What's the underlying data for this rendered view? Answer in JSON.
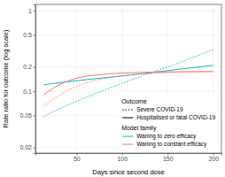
{
  "chart_data": {
    "type": "line",
    "xlabel": "Days since second dose",
    "ylabel": "Rate ratio for outcome (log scale)",
    "log": "y",
    "grid": true,
    "legend": "bottom-right",
    "x": [
      14,
      25,
      50,
      75,
      100,
      125,
      150,
      175,
      200
    ],
    "xlim": [
      5,
      209
    ],
    "xticks": [
      50,
      100,
      150,
      200
    ],
    "ylim": [
      0.017,
      1.2
    ],
    "yticks": [
      0.02,
      0.05,
      0.1,
      0.2,
      0.5,
      1
    ],
    "series": [
      {
        "color": "#00BFC4",
        "line_style": "solid",
        "values": [
          0.12,
          0.125,
          0.135,
          0.145,
          0.155,
          0.167,
          0.18,
          0.195,
          0.21
        ]
      },
      {
        "color": "#00BFC4",
        "line_style": "dotted",
        "values": [
          0.048,
          0.056,
          0.075,
          0.098,
          0.125,
          0.16,
          0.2,
          0.255,
          0.33
        ]
      },
      {
        "color": "#F8766D",
        "line_style": "solid",
        "values": [
          0.09,
          0.11,
          0.145,
          0.16,
          0.168,
          0.172,
          0.174,
          0.175,
          0.176
        ]
      },
      {
        "color": "#F8766D",
        "line_style": "dotted",
        "values": [
          0.065,
          0.08,
          0.115,
          0.14,
          0.155,
          0.165,
          0.17,
          0.173,
          0.175
        ]
      }
    ],
    "legend_groups": [
      {
        "title": "Outcome",
        "entries": [
          {
            "label": "Severe COVID-19",
            "line_style": "dotted"
          },
          {
            "label": "Hospitalised or fatal COVID-19",
            "line_style": "solid"
          }
        ]
      },
      {
        "title": "Model family",
        "entries": [
          {
            "label": "Waning to zero efficacy",
            "color": "#00BFC4"
          },
          {
            "label": "Waning to constant efficacy",
            "color": "#F8766D"
          }
        ]
      }
    ]
  }
}
